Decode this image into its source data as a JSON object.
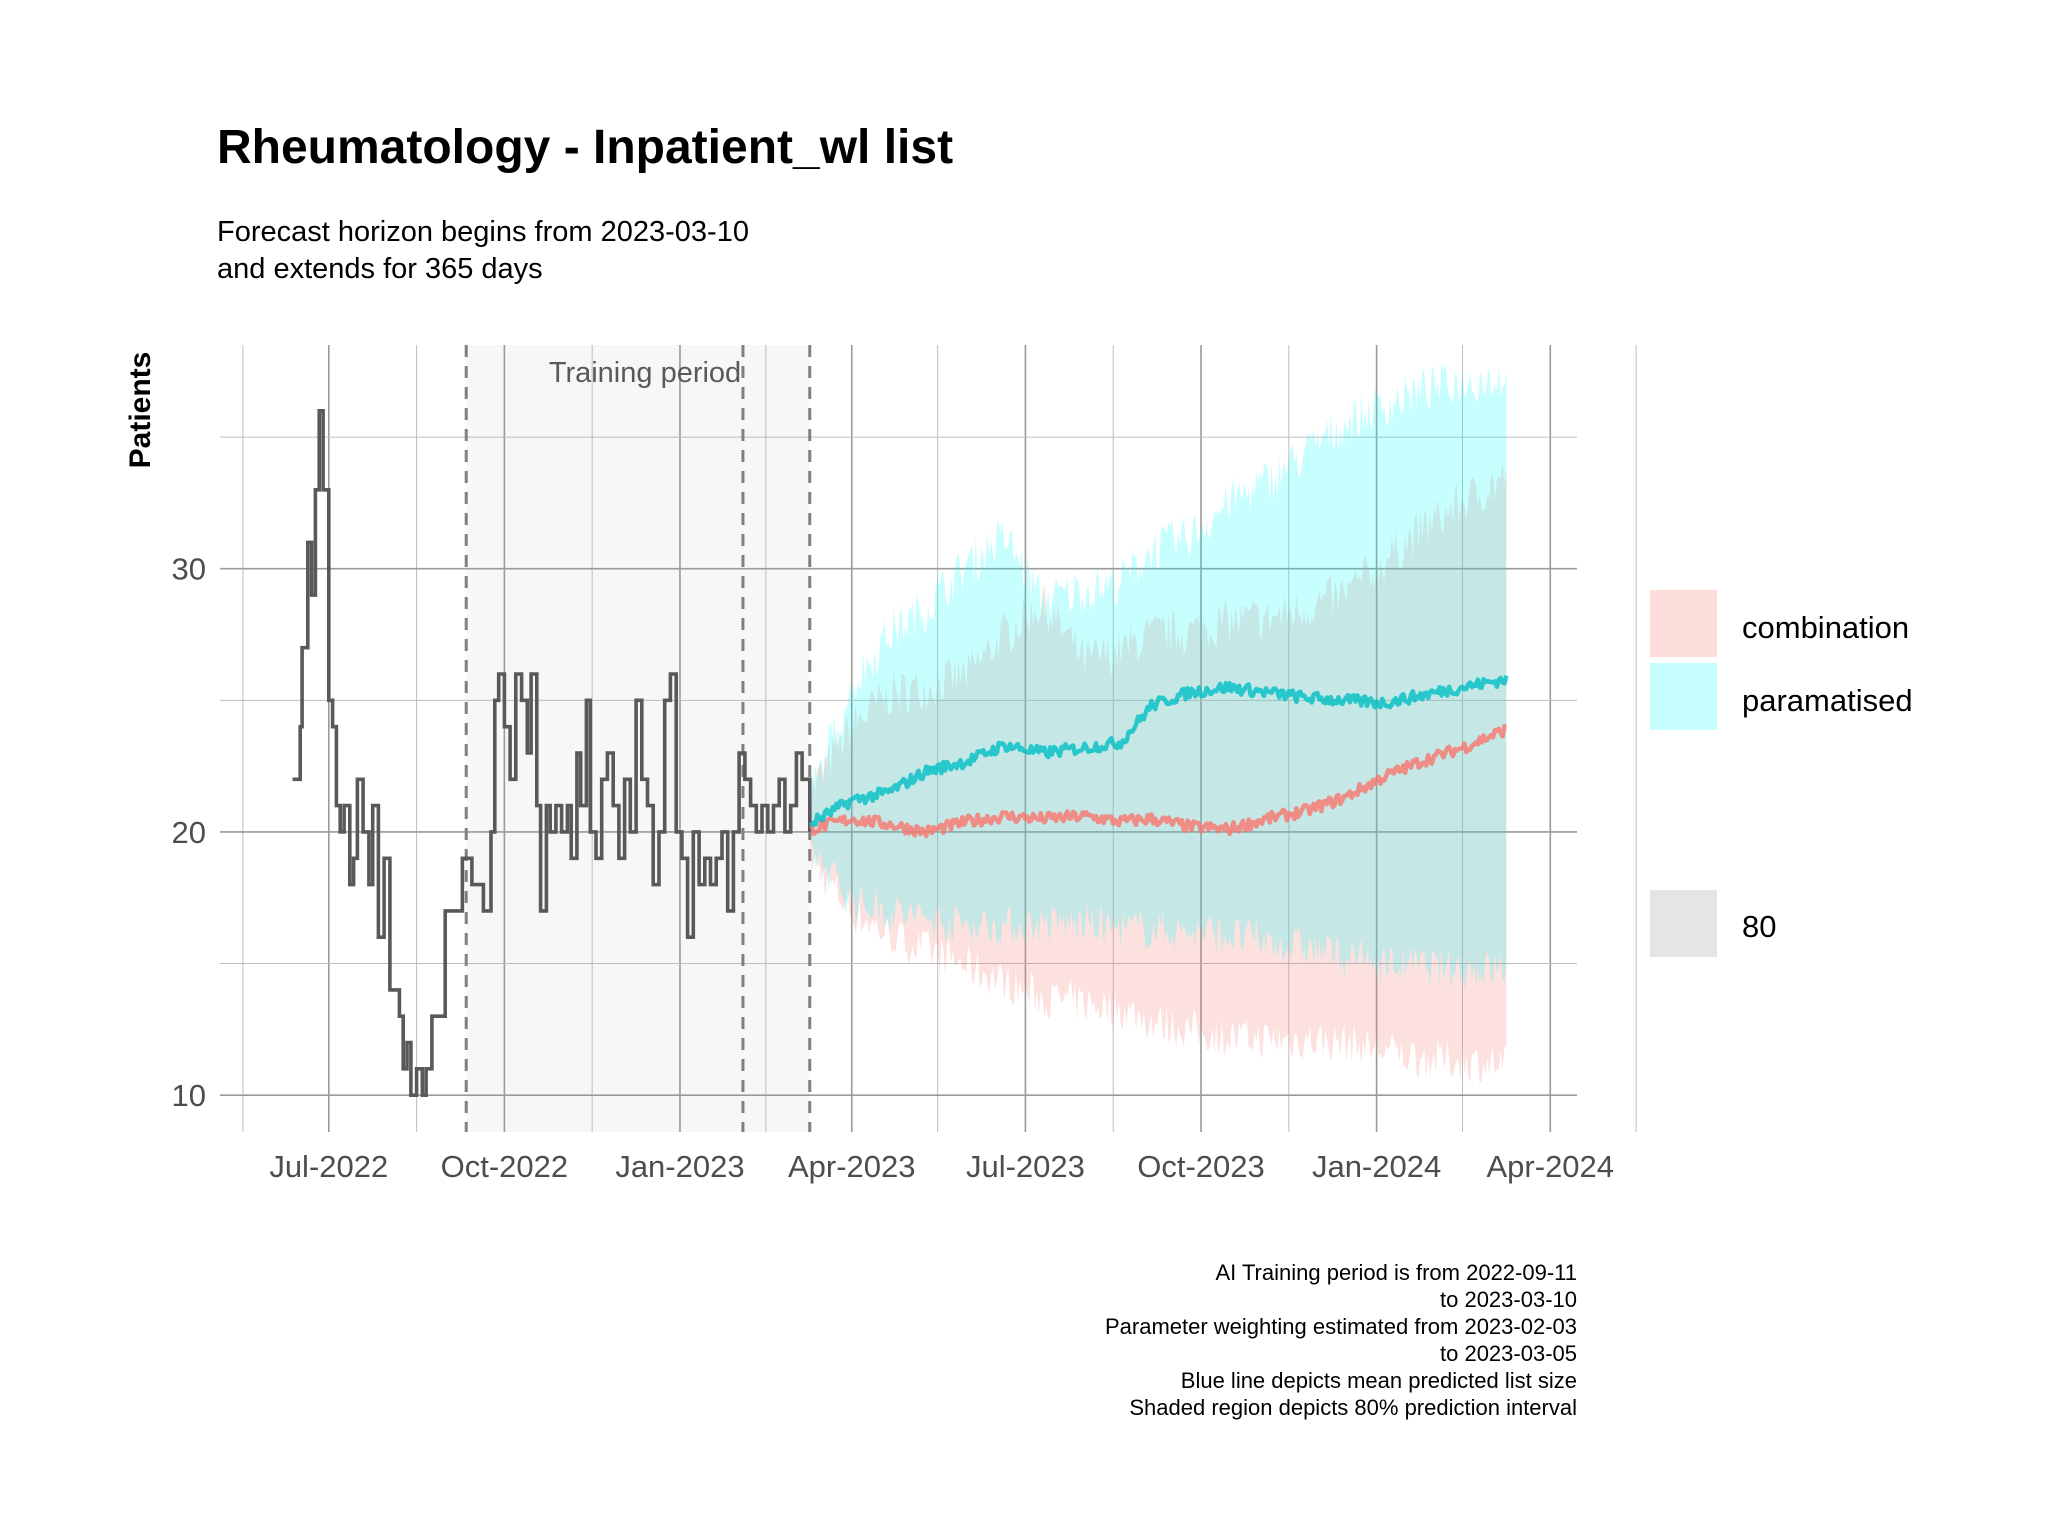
{
  "chart_data": {
    "type": "line",
    "title": "Rheumatology - Inpatient_wl list",
    "subtitle_lines": [
      "Forecast horizon begins from 2023-03-10",
      "and extends for 365 days"
    ],
    "ylabel": "Patients",
    "xlabel": "",
    "x_axis_type": "date",
    "xlim": [
      "2022-05-05",
      "2024-04-15"
    ],
    "ylim": [
      8.6,
      38.5
    ],
    "y_ticks": [
      10,
      20,
      30
    ],
    "x_ticks": [
      {
        "date": "2022-07-01",
        "label": "Jul-2022"
      },
      {
        "date": "2022-10-01",
        "label": "Oct-2022"
      },
      {
        "date": "2023-01-01",
        "label": "Jan-2023"
      },
      {
        "date": "2023-04-01",
        "label": "Apr-2023"
      },
      {
        "date": "2023-07-01",
        "label": "Jul-2023"
      },
      {
        "date": "2023-10-01",
        "label": "Oct-2023"
      },
      {
        "date": "2024-01-01",
        "label": "Jan-2024"
      },
      {
        "date": "2024-04-01",
        "label": "Apr-2024"
      }
    ],
    "grid": true,
    "annotation": "Training period",
    "training_period": {
      "start": "2022-09-11",
      "end": "2023-03-10"
    },
    "weighting_period_start": "2023-02-03",
    "forecast_start": "2023-03-10",
    "colors": {
      "history": "#595959",
      "combination": "#F8766D",
      "paramatised": "#00BFC4",
      "combination_band": "#F8766D",
      "paramatised_band": "#00FFFF",
      "training_shade": "#f2f2f2",
      "interval_key": "#e5e5e5"
    },
    "legend": {
      "position": "right",
      "series_entries": [
        "combination",
        "paramatised"
      ],
      "interval_entries": [
        "80"
      ]
    },
    "history": {
      "dates": [
        "2022-06-12",
        "2022-06-16",
        "2022-06-17",
        "2022-06-20",
        "2022-06-22",
        "2022-06-24",
        "2022-06-26",
        "2022-06-28",
        "2022-07-01",
        "2022-07-03",
        "2022-07-05",
        "2022-07-07",
        "2022-07-09",
        "2022-07-12",
        "2022-07-14",
        "2022-07-16",
        "2022-07-19",
        "2022-07-22",
        "2022-07-24",
        "2022-07-27",
        "2022-07-30",
        "2022-08-02",
        "2022-08-05",
        "2022-08-07",
        "2022-08-09",
        "2022-08-11",
        "2022-08-13",
        "2022-08-16",
        "2022-08-19",
        "2022-08-21",
        "2022-08-24",
        "2022-08-27",
        "2022-08-29",
        "2022-08-31",
        "2022-09-02",
        "2022-09-04",
        "2022-09-06",
        "2022-09-09",
        "2022-09-14",
        "2022-09-20",
        "2022-09-24",
        "2022-09-26",
        "2022-09-28",
        "2022-10-01",
        "2022-10-04",
        "2022-10-07",
        "2022-10-10",
        "2022-10-13",
        "2022-10-15",
        "2022-10-18",
        "2022-10-20",
        "2022-10-23",
        "2022-10-25",
        "2022-10-28",
        "2022-10-31",
        "2022-11-03",
        "2022-11-05",
        "2022-11-08",
        "2022-11-10",
        "2022-11-13",
        "2022-11-15",
        "2022-11-18",
        "2022-11-21",
        "2022-11-24",
        "2022-11-27",
        "2022-11-30",
        "2022-12-03",
        "2022-12-06",
        "2022-12-09",
        "2022-12-12",
        "2022-12-15",
        "2022-12-18",
        "2022-12-21",
        "2022-12-24",
        "2022-12-27",
        "2022-12-30",
        "2023-01-02",
        "2023-01-05",
        "2023-01-08",
        "2023-01-11",
        "2023-01-14",
        "2023-01-17",
        "2023-01-20",
        "2023-01-23",
        "2023-01-26",
        "2023-01-29",
        "2023-02-01",
        "2023-02-04",
        "2023-02-07",
        "2023-02-10",
        "2023-02-13",
        "2023-02-16",
        "2023-02-19",
        "2023-02-22",
        "2023-02-25",
        "2023-02-28",
        "2023-03-03",
        "2023-03-06",
        "2023-03-10"
      ],
      "values": [
        22,
        24,
        27,
        31,
        29,
        33,
        36,
        33,
        25,
        24,
        21,
        20,
        21,
        18,
        19,
        22,
        20,
        18,
        21,
        16,
        19,
        14,
        14,
        13,
        11,
        12,
        10,
        11,
        10,
        11,
        13,
        13,
        13,
        17,
        17,
        17,
        17,
        19,
        18,
        17,
        20,
        25,
        26,
        24,
        22,
        26,
        25,
        23,
        26,
        21,
        17,
        21,
        20,
        21,
        20,
        21,
        19,
        23,
        21,
        25,
        20,
        19,
        22,
        23,
        21,
        19,
        22,
        20,
        25,
        22,
        21,
        18,
        20,
        25,
        26,
        20,
        19,
        16,
        20,
        18,
        19,
        18,
        19,
        20,
        17,
        20,
        23,
        22,
        21,
        20,
        21,
        20,
        21,
        22,
        20,
        21,
        23,
        22,
        20
      ]
    },
    "forecast": {
      "dates": [
        "2023-03-10",
        "2023-04-01",
        "2023-04-20",
        "2023-05-10",
        "2023-06-01",
        "2023-06-20",
        "2023-07-10",
        "2023-08-01",
        "2023-08-20",
        "2023-09-05",
        "2023-09-25",
        "2023-10-15",
        "2023-11-05",
        "2023-11-25",
        "2023-12-15",
        "2024-01-05",
        "2024-01-25",
        "2024-02-15",
        "2024-03-09"
      ],
      "series": [
        {
          "name": "combination",
          "values": [
            20.1,
            20.5,
            20.3,
            20.0,
            20.4,
            20.6,
            20.5,
            20.6,
            20.4,
            20.5,
            20.2,
            20.1,
            20.5,
            20.8,
            21.3,
            22.1,
            22.7,
            23.2,
            23.9
          ],
          "lower": [
            19.0,
            17.0,
            16.1,
            15.5,
            14.9,
            14.3,
            13.7,
            13.5,
            13.3,
            12.8,
            12.5,
            12.2,
            12.1,
            12.1,
            12.0,
            11.7,
            11.4,
            11.3,
            11.1
          ],
          "upper": [
            21.5,
            24.0,
            25.2,
            25.5,
            26.0,
            27.5,
            28.7,
            26.5,
            26.9,
            27.5,
            27.6,
            28.0,
            28.1,
            28.5,
            29.0,
            30.3,
            31.5,
            32.5,
            33.5
          ]
        },
        {
          "name": "paramatised",
          "values": [
            20.3,
            21.2,
            21.5,
            22.3,
            22.7,
            23.3,
            23.0,
            23.2,
            23.4,
            24.8,
            25.3,
            25.5,
            25.3,
            25.1,
            25.0,
            24.9,
            25.2,
            25.5,
            25.8
          ],
          "lower": [
            19.3,
            17.4,
            17.0,
            16.7,
            16.5,
            16.4,
            16.5,
            16.5,
            16.3,
            16.3,
            16.2,
            16.1,
            15.8,
            15.6,
            15.3,
            15.0,
            14.9,
            14.8,
            14.8
          ],
          "upper": [
            21.2,
            25.5,
            27.5,
            28.5,
            30.2,
            31.2,
            28.8,
            29.2,
            29.5,
            30.7,
            31.2,
            32.5,
            33.3,
            34.4,
            35.5,
            36.2,
            36.8,
            37.1,
            37.3
          ]
        }
      ]
    }
  },
  "caption_lines": [
    "AI Training period is from 2022-09-11",
    "to 2023-03-10",
    "Parameter weighting estimated from 2023-02-03",
    "to 2023-03-05",
    "Blue line depicts mean predicted list size",
    "Shaded region depicts 80% prediction interval"
  ]
}
